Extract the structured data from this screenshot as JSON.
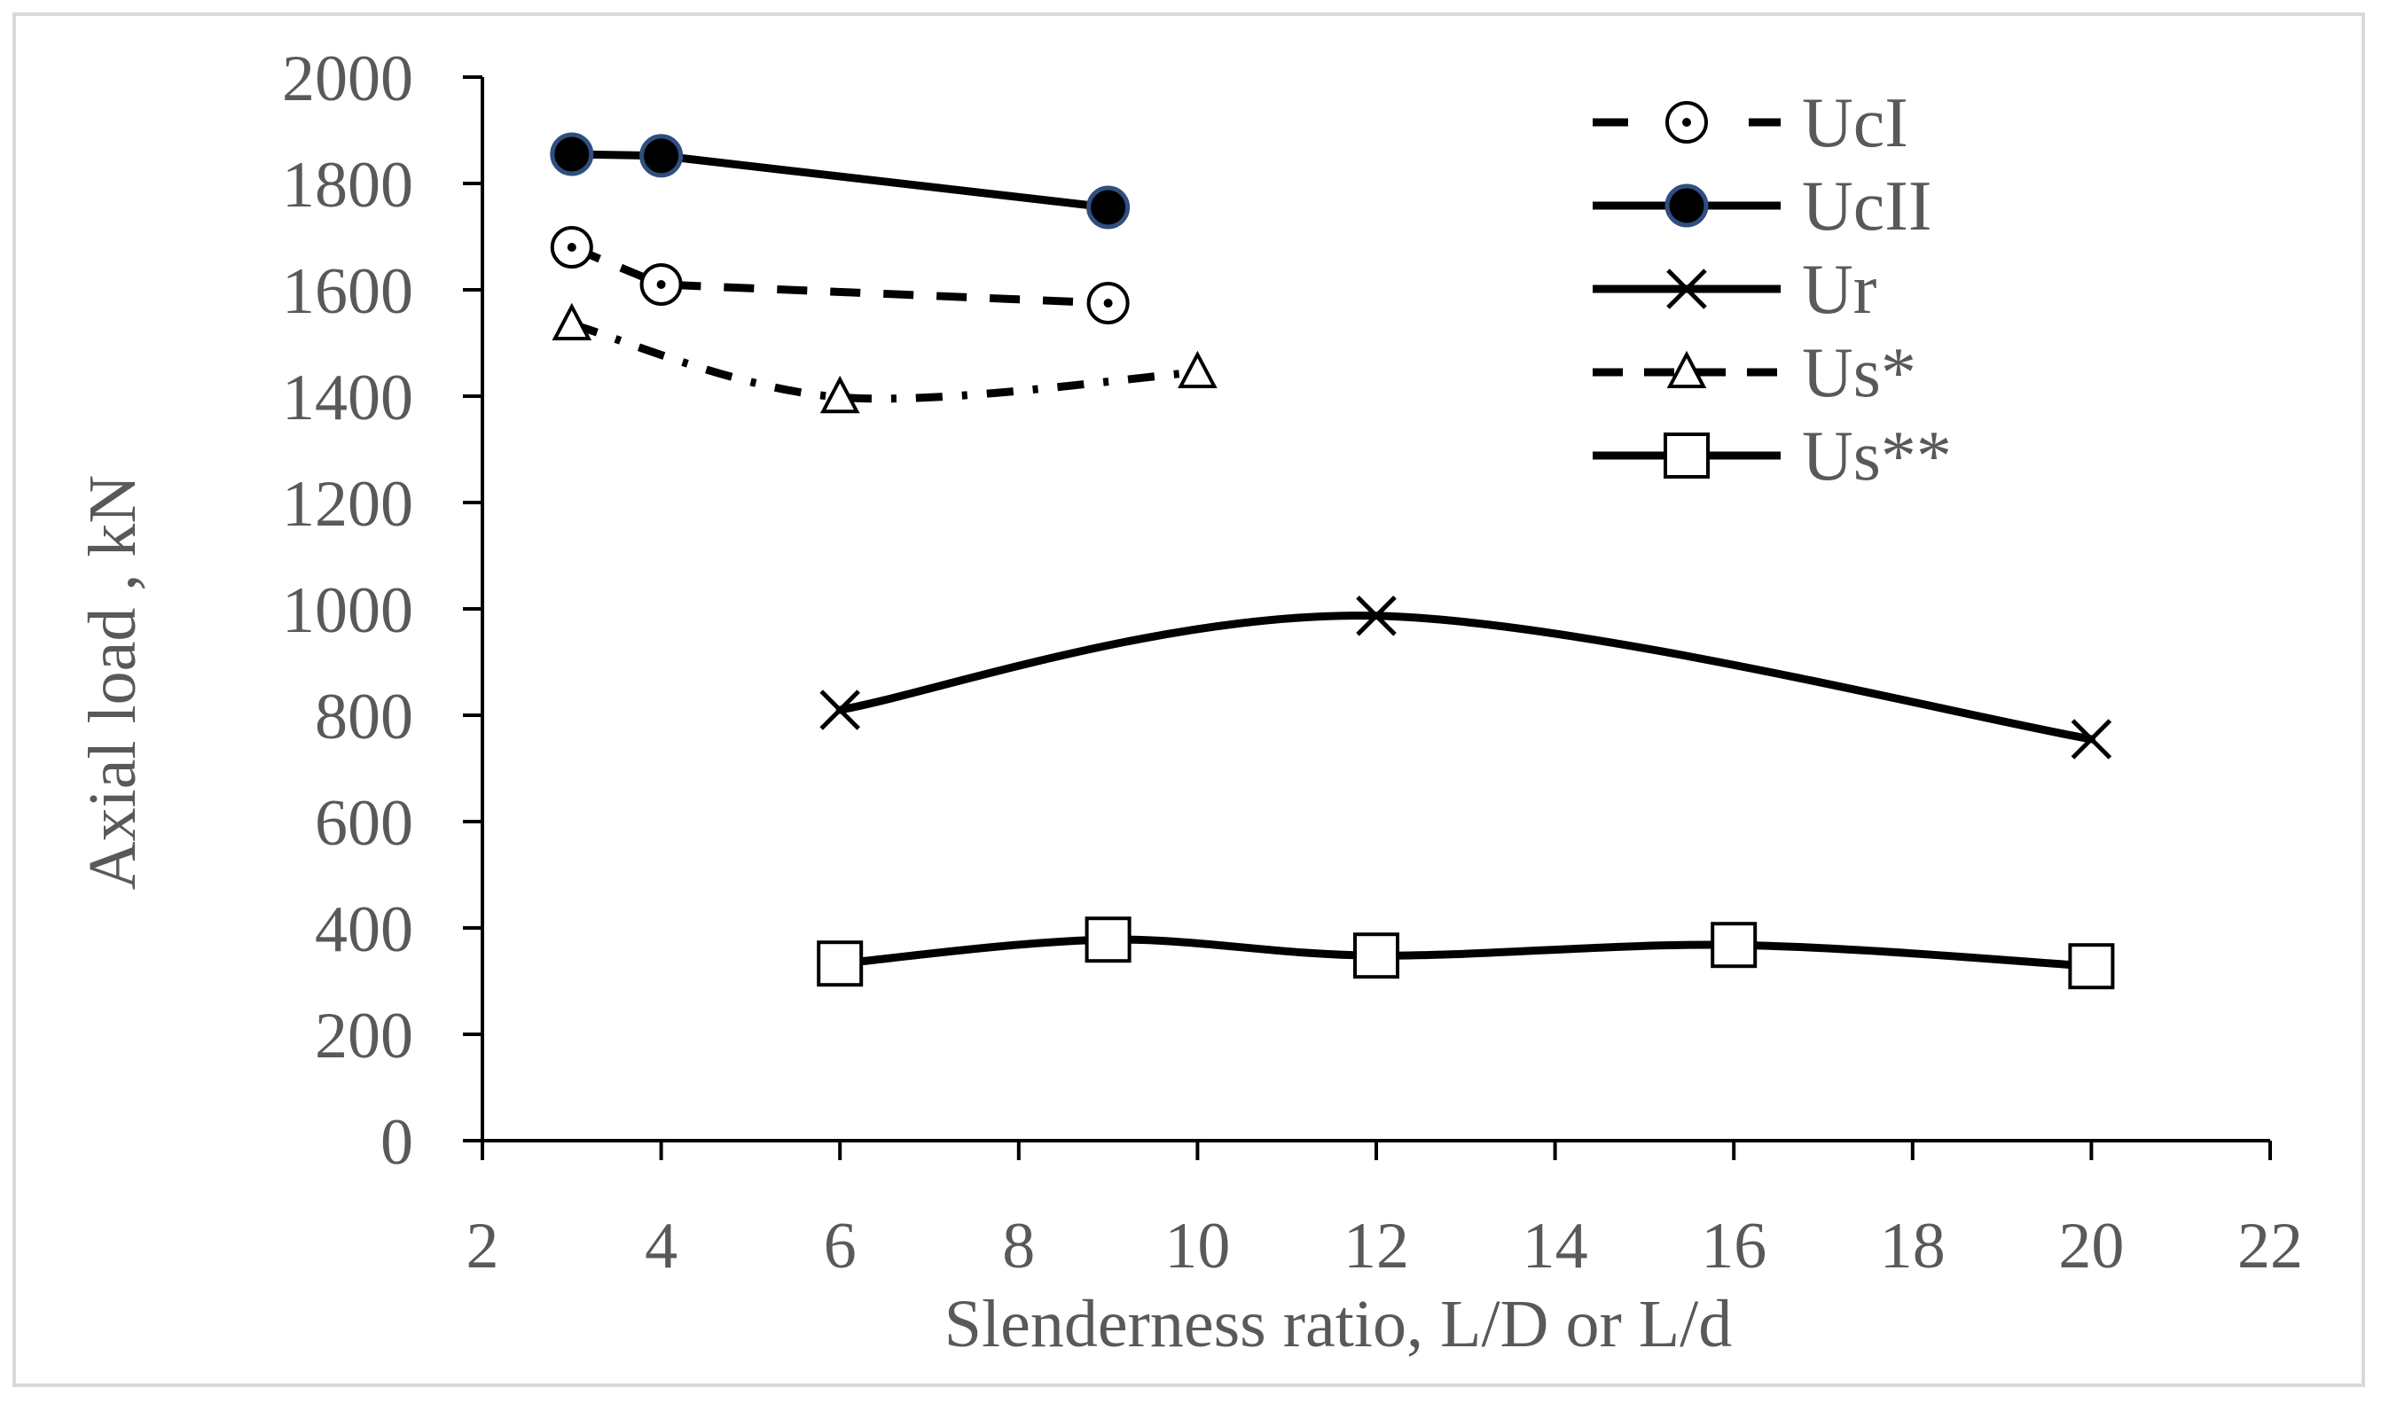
{
  "chart_data": {
    "type": "line",
    "title": "",
    "xlabel": "Slenderness ratio, L/D or L/d",
    "ylabel": "Axial load , kN",
    "xlim": [
      2,
      22
    ],
    "ylim": [
      0,
      2000
    ],
    "x_ticks": [
      "2",
      "4",
      "6",
      "8",
      "10",
      "12",
      "14",
      "16",
      "18",
      "20",
      "22"
    ],
    "y_ticks": [
      "0",
      "200",
      "400",
      "600",
      "800",
      "1000",
      "1200",
      "1400",
      "1600",
      "1800",
      "2000"
    ],
    "grid": false,
    "legend_position": "top-right",
    "series": [
      {
        "name": "UcI",
        "marker": "circle-dot",
        "line": "dashed",
        "smooth": false,
        "x": [
          3,
          4,
          9
        ],
        "y": [
          1680,
          1610,
          1575
        ]
      },
      {
        "name": "UcII",
        "marker": "filled-circle",
        "line": "solid",
        "smooth": false,
        "x": [
          3,
          4,
          9
        ],
        "y": [
          1855,
          1852,
          1755
        ]
      },
      {
        "name": "Ur",
        "marker": "x",
        "line": "solid",
        "smooth": true,
        "x": [
          6,
          12,
          20
        ],
        "y": [
          810,
          987,
          755
        ]
      },
      {
        "name": "Us*",
        "marker": "triangle",
        "line": "dashdot",
        "smooth": true,
        "x": [
          3,
          6,
          10
        ],
        "y": [
          1535,
          1398,
          1445
        ]
      },
      {
        "name": "Us**",
        "marker": "square",
        "line": "solid",
        "smooth": true,
        "x": [
          6,
          9,
          12,
          16,
          20
        ],
        "y": [
          333,
          378,
          348,
          368,
          328
        ]
      }
    ]
  },
  "colors": {
    "text": "#595959",
    "line": "#000000",
    "ucii_marker_edge": "#2f4f7f",
    "frame": "#d9d9d9"
  }
}
